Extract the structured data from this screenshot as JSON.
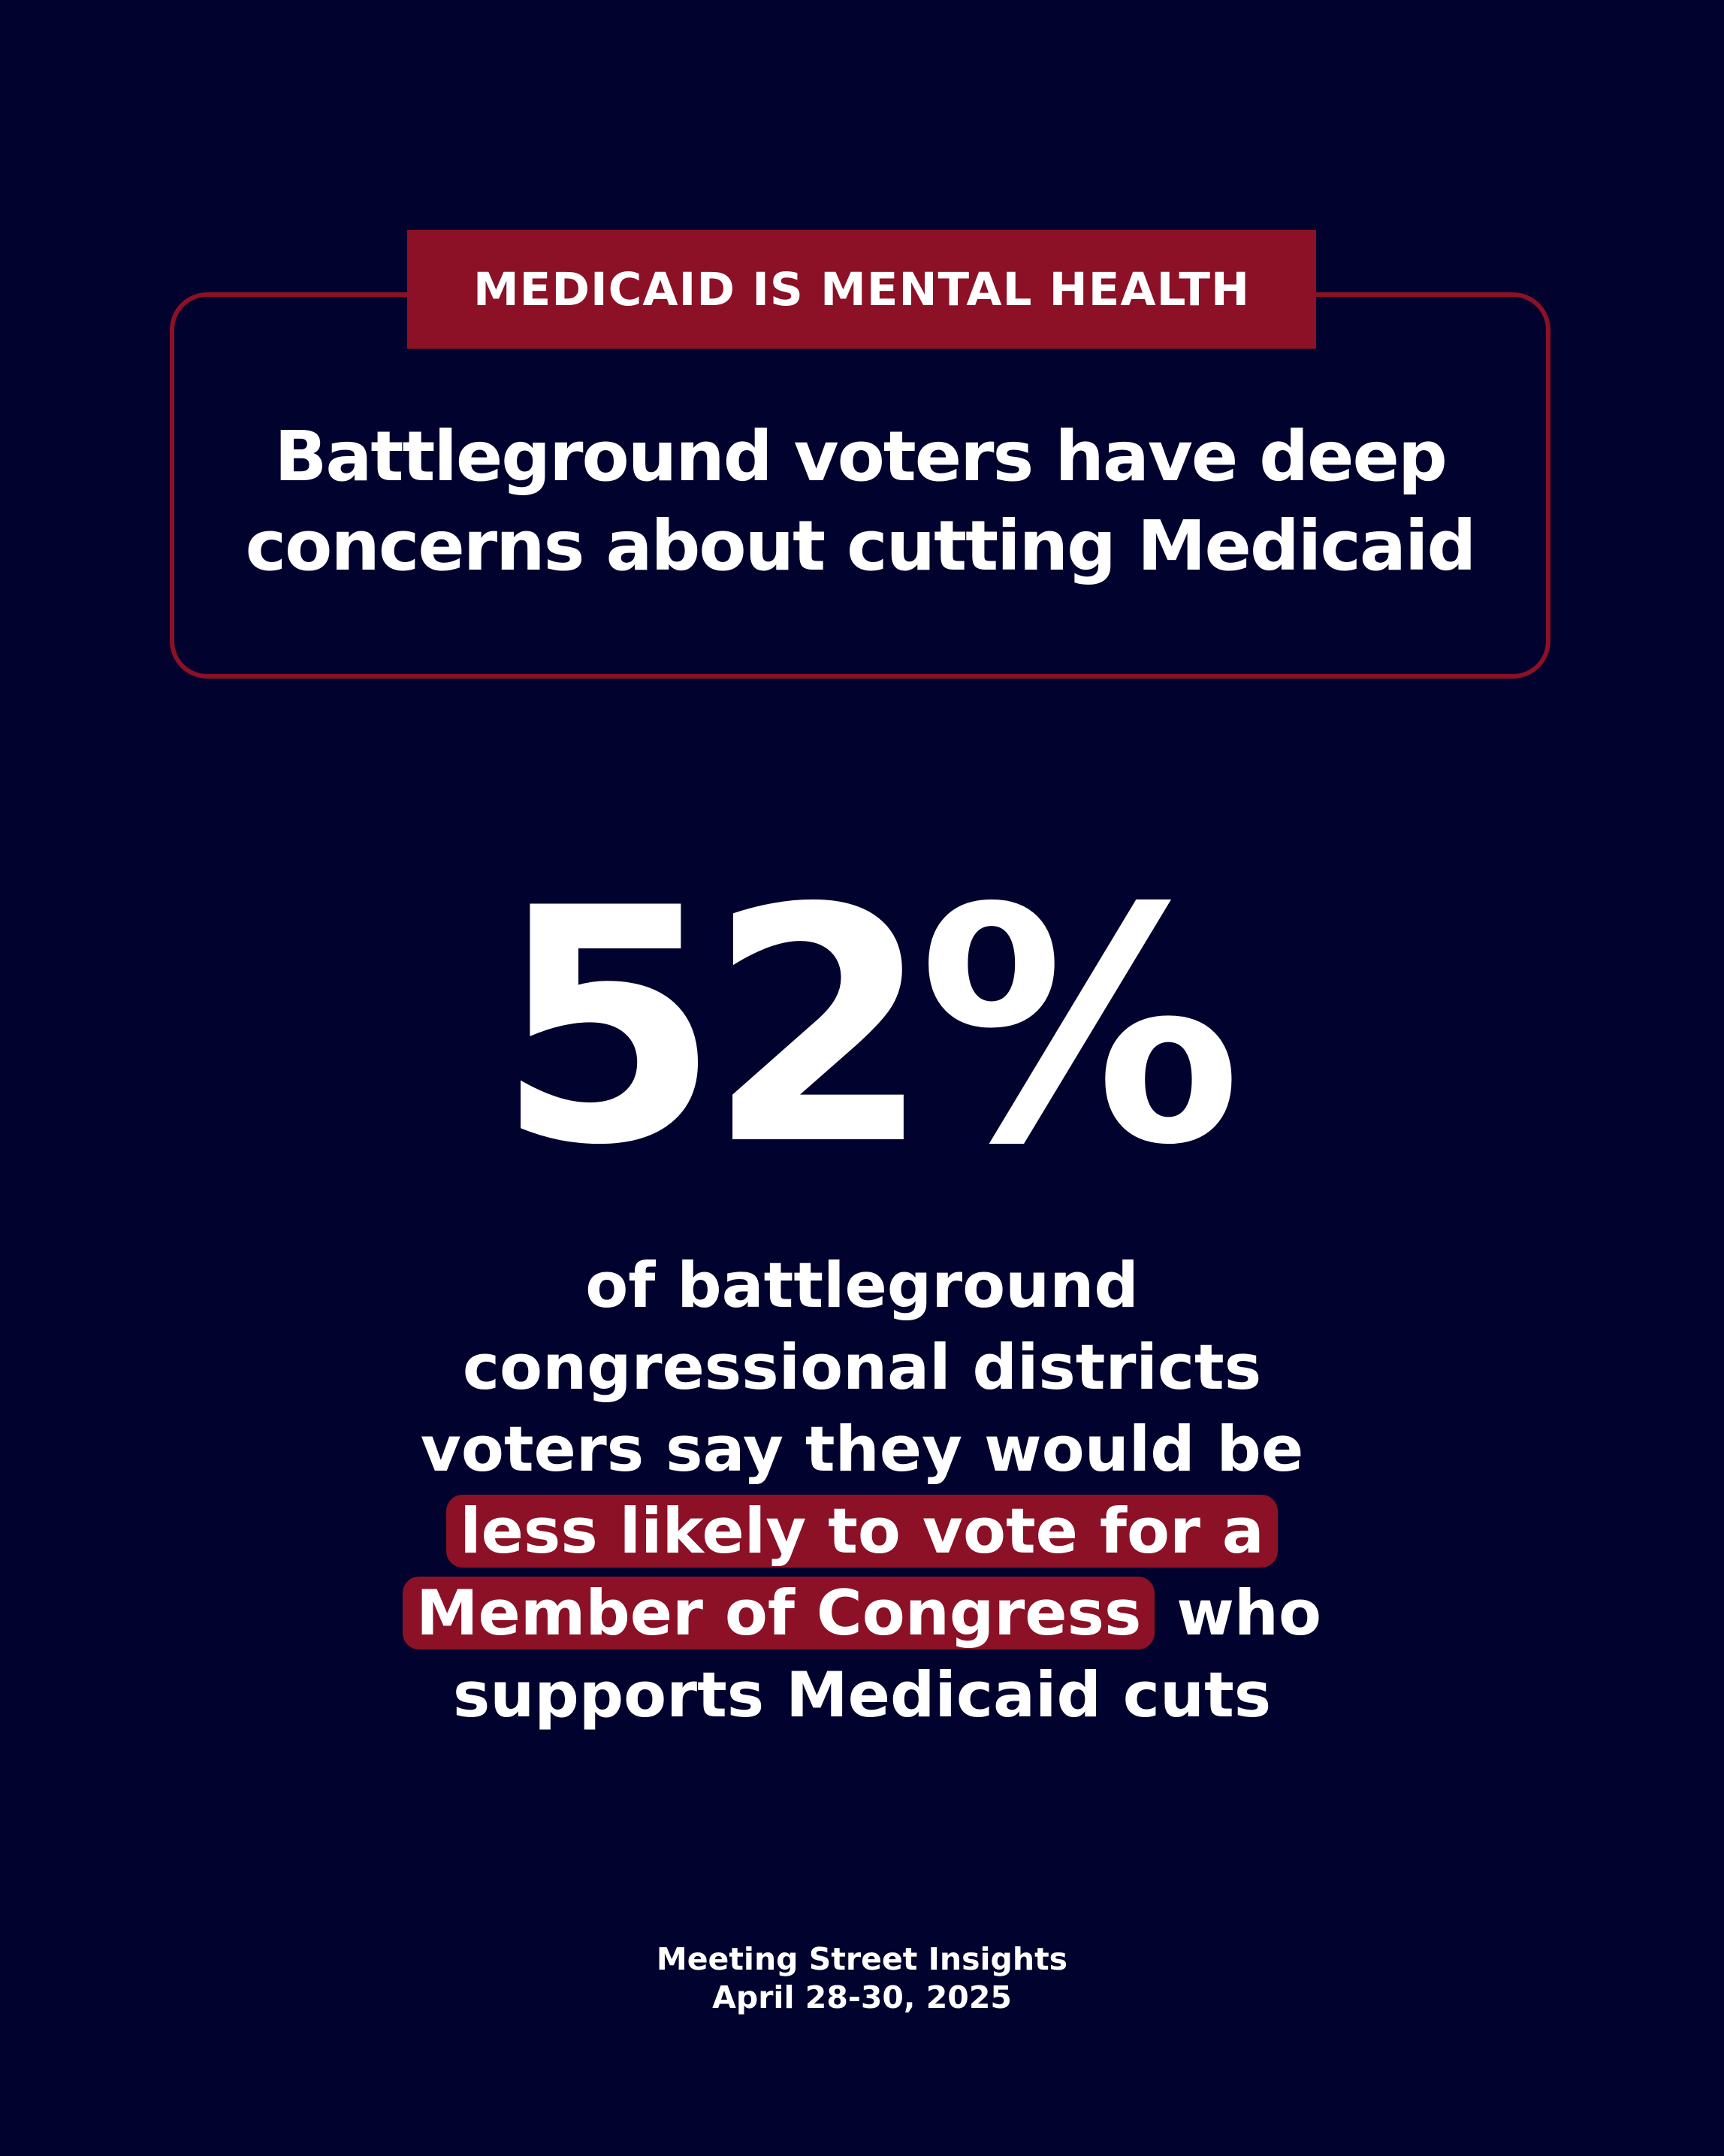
{
  "tag": {
    "label": "MEDICAID IS MENTAL HEALTH"
  },
  "headline": {
    "line1": "Battleground voters have deep",
    "line2": "concerns about cutting Medicaid"
  },
  "stat": {
    "value": "52%"
  },
  "description": {
    "line1": "of battleground",
    "line2": "congressional districts",
    "line3": "voters say they would be",
    "line4_highlight": "less likely to vote for a",
    "line5_highlight": "Member of Congress",
    "line5_rest": " who",
    "line6": "supports Medicaid cuts"
  },
  "source": {
    "org": "Meeting Street Insights",
    "date": "April 28-30, 2025"
  },
  "colors": {
    "background": "#02022e",
    "accent": "#8c1126",
    "text": "#ffffff"
  }
}
